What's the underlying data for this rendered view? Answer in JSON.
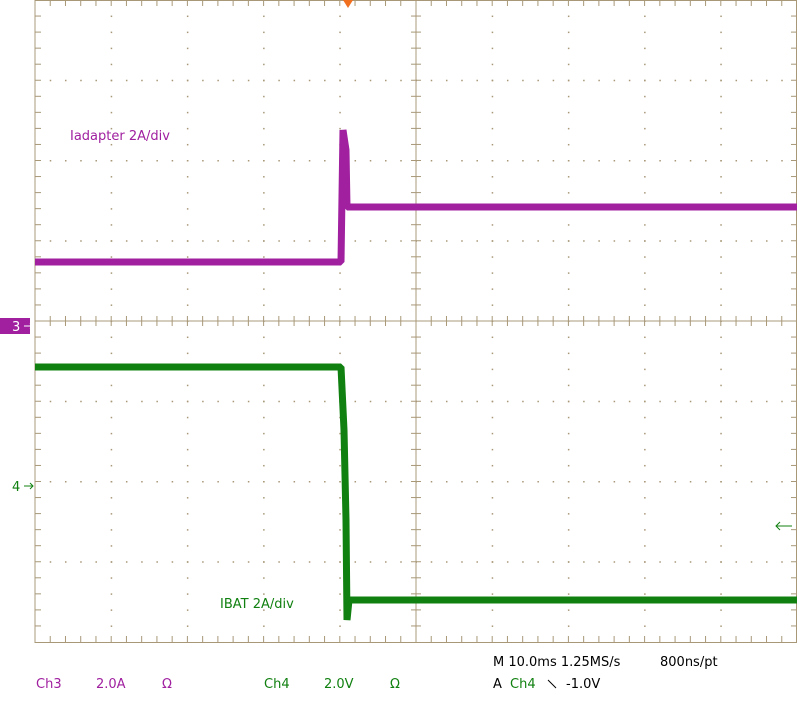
{
  "scope": {
    "ch3_trace_label": "Iadapter 2A/div",
    "ch4_trace_label": "IBAT 2A/div",
    "ch3_marker": "3",
    "ch4_marker": "4",
    "readout": {
      "ch3_name": "Ch3",
      "ch3_scale": "2.0A",
      "ch3_impedance": "Ω",
      "ch4_name": "Ch4",
      "ch4_scale": "2.0V",
      "ch4_impedance": "Ω",
      "timebase": "M 10.0ms 1.25MS/s",
      "record": "800ns/pt",
      "trigger_mode": "A",
      "trigger_source": "Ch4",
      "trigger_level": "-1.0V"
    }
  }
}
